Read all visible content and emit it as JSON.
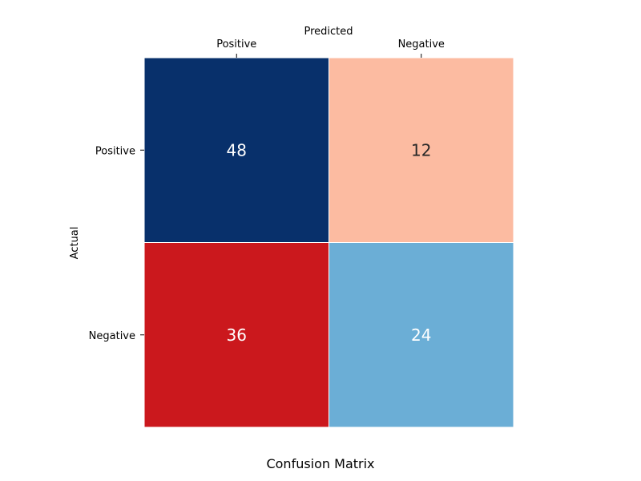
{
  "chart_data": {
    "type": "heatmap",
    "title": "Confusion Matrix",
    "xlabel": "Predicted",
    "ylabel": "Actual",
    "x_categories": [
      "Positive",
      "Negative"
    ],
    "y_categories": [
      "Positive",
      "Negative"
    ],
    "values": [
      [
        48,
        12
      ],
      [
        36,
        24
      ]
    ],
    "cell_colors": [
      [
        "#08306b",
        "#fcbba1"
      ],
      [
        "#cb181d",
        "#6baed6"
      ]
    ],
    "value_text_colors": [
      [
        "#ffffff",
        "#262626"
      ],
      [
        "#ffffff",
        "#ffffff"
      ]
    ],
    "grid": false,
    "legend": "none",
    "x_axis_position": "top"
  }
}
